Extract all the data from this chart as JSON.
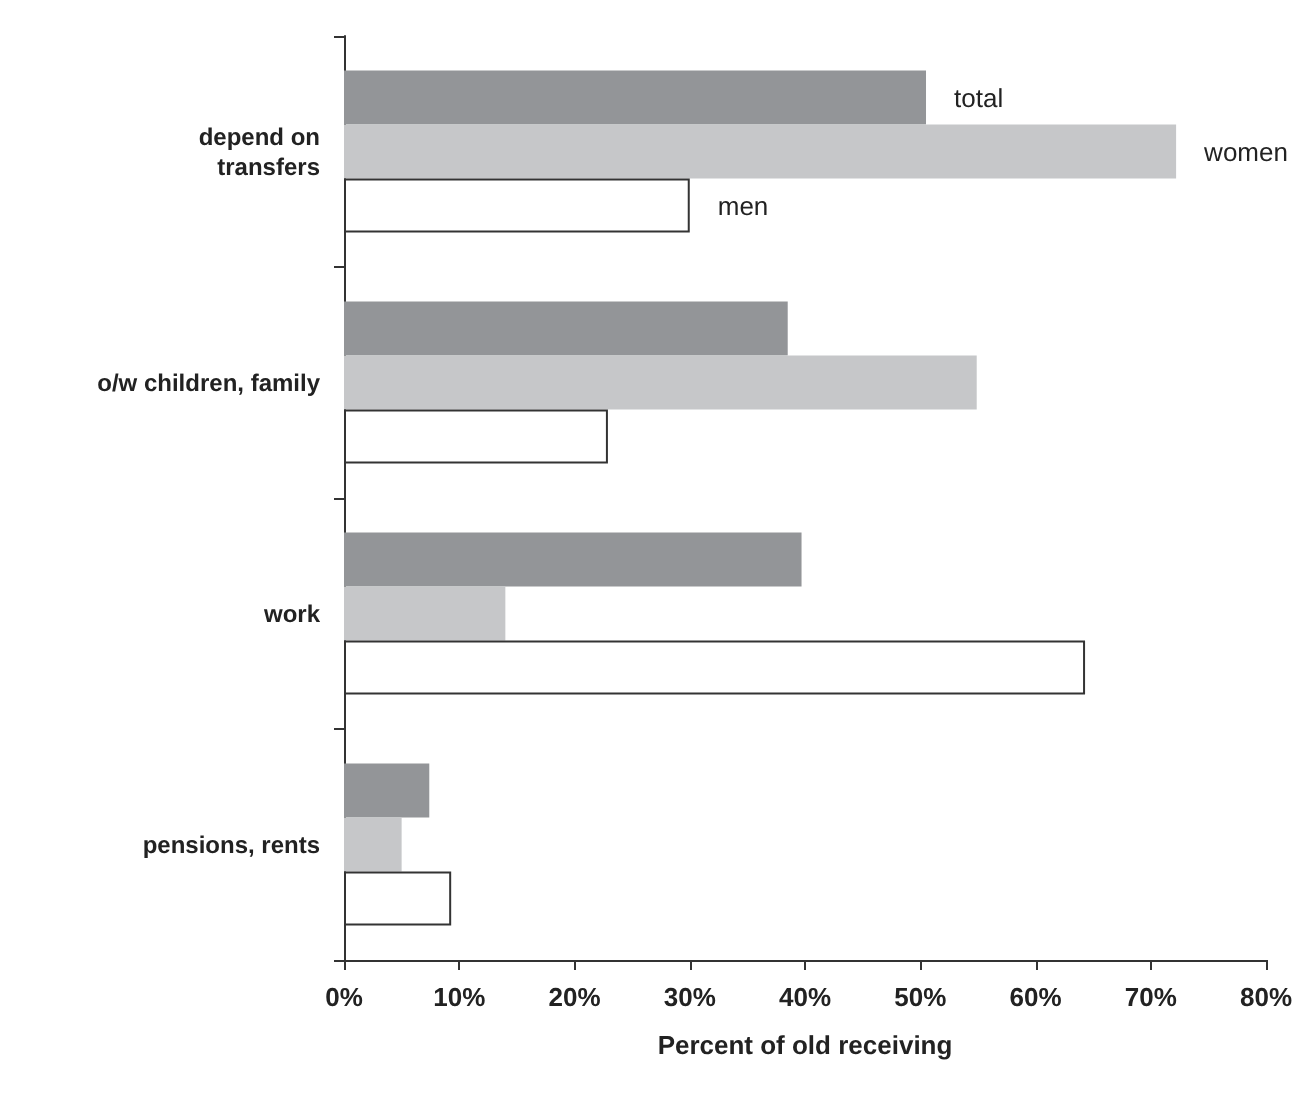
{
  "chart_data": {
    "type": "bar",
    "orientation": "horizontal",
    "xlabel": "Percent of old receiving",
    "categories": [
      "depend on\ntransfers",
      "o/w children, family",
      "work",
      "pensions, rents"
    ],
    "series": [
      {
        "name": "total",
        "color": "#939598",
        "values": [
          50.5,
          38.5,
          39.7,
          7.4
        ]
      },
      {
        "name": "women",
        "color": "#c6c7c9",
        "values": [
          72.2,
          54.9,
          14.0,
          5.0
        ]
      },
      {
        "name": "men",
        "color": "#ffffff",
        "values": [
          30.0,
          22.9,
          64.3,
          9.3
        ]
      }
    ],
    "xlim": [
      0,
      80
    ],
    "xticks": [
      {
        "value": 0,
        "label": "0%"
      },
      {
        "value": 10,
        "label": "10%"
      },
      {
        "value": 20,
        "label": "20%"
      },
      {
        "value": 30,
        "label": "30%"
      },
      {
        "value": 40,
        "label": "40%"
      },
      {
        "value": 50,
        "label": "50%"
      },
      {
        "value": 60,
        "label": "60%"
      },
      {
        "value": 70,
        "label": "70%"
      },
      {
        "value": 80,
        "label": "80%"
      }
    ],
    "grid": false,
    "legend": false
  }
}
